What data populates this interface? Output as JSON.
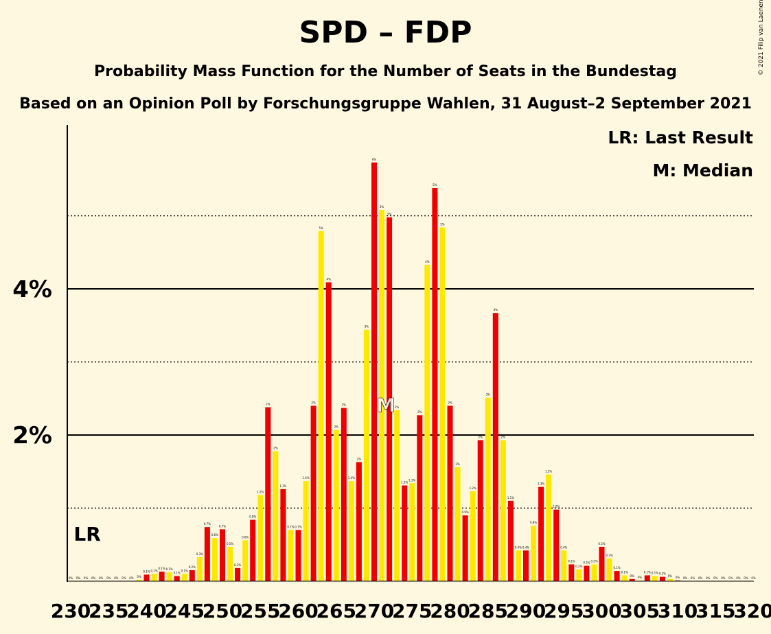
{
  "title": "SPD – FDP",
  "subtitle": "Probability Mass Function for the Number of Seats in the Bundestag",
  "source": "Based on an Opinion Poll by Forschungsgruppe Wahlen, 31 August–2 September 2021",
  "copyright": "© 2021 Filip van Laenen",
  "legend": {
    "lr": "LR: Last Result",
    "m": "M: Median"
  },
  "markers": {
    "last_result_label": "LR",
    "last_result_seat": 232,
    "median_label": "M",
    "median_seat": 272
  },
  "colors": {
    "background": "#FFF8E0",
    "red": "#EE0000",
    "yellow": "#FFE800"
  },
  "chart_data": {
    "type": "bar",
    "x_ticks": [
      230,
      235,
      240,
      245,
      250,
      255,
      260,
      265,
      270,
      275,
      280,
      285,
      290,
      295,
      300,
      305,
      310,
      315,
      320
    ],
    "y_ticks": [
      {
        "value": 2,
        "label": "2%"
      },
      {
        "value": 4,
        "label": "4%"
      }
    ],
    "ylim": [
      0,
      6.2
    ],
    "grid": "solid lines at 2% and 4%, dotted at 1%, 3% and 5%",
    "x": [
      230,
      231,
      232,
      233,
      234,
      235,
      236,
      237,
      238,
      239,
      240,
      241,
      242,
      243,
      244,
      245,
      246,
      247,
      248,
      249,
      250,
      251,
      252,
      253,
      254,
      255,
      256,
      257,
      258,
      259,
      260,
      261,
      262,
      263,
      264,
      265,
      266,
      267,
      268,
      269,
      270,
      271,
      272,
      273,
      274,
      275,
      276,
      277,
      278,
      279,
      280,
      281,
      282,
      283,
      284,
      285,
      286,
      287,
      288,
      289,
      290,
      291,
      292,
      293,
      294,
      295,
      296,
      297,
      298,
      299,
      300,
      301,
      302,
      303,
      304,
      305,
      306,
      307,
      308,
      309,
      310,
      311,
      312,
      313,
      314,
      315,
      316,
      317,
      318,
      319,
      320
    ],
    "values": [
      0,
      0,
      0,
      0,
      0,
      0,
      0,
      0,
      0,
      0.02,
      0.09,
      0.1,
      0.13,
      0.12,
      0.07,
      0.1,
      0.15,
      0.33,
      0.74,
      0.59,
      0.71,
      0.47,
      0.18,
      0.56,
      0.84,
      1.18,
      2.38,
      1.78,
      1.26,
      0.7,
      0.7,
      1.37,
      2.4,
      4.79,
      4.09,
      2.07,
      2.37,
      1.37,
      1.63,
      3.44,
      5.73,
      5.08,
      4.98,
      2.34,
      1.31,
      1.34,
      2.27,
      4.33,
      5.38,
      4.84,
      2.4,
      1.56,
      0.9,
      1.23,
      1.93,
      2.51,
      3.67,
      1.93,
      1.1,
      0.42,
      0.42,
      0.76,
      1.29,
      1.46,
      0.98,
      0.42,
      0.23,
      0.16,
      0.21,
      0.23,
      0.47,
      0.31,
      0.14,
      0.08,
      0.03,
      0.01,
      0.08,
      0.07,
      0.06,
      0.03,
      0.01,
      0,
      0,
      0,
      0,
      0,
      0,
      0,
      0,
      0,
      0
    ],
    "value_labels": [
      "0%",
      "0%",
      "0%",
      "0%",
      "0%",
      "0%",
      "0%",
      "0%",
      "0%",
      "0%",
      "0.1%",
      "0.1%",
      "0.1%",
      "0.1%",
      "0.1%",
      "0.1%",
      "0.2%",
      "0.3%",
      "0.7%",
      "0.6%",
      "0.7%",
      "0.5%",
      "0.2%",
      "0.6%",
      "0.8%",
      "1.2%",
      "2%",
      "2%",
      "1.3%",
      "0.7%",
      "0.7%",
      "1.4%",
      "2%",
      "5%",
      "4%",
      "2%",
      "2%",
      "1.4%",
      "2%",
      "3%",
      "6%",
      "5%",
      "5%",
      "2%",
      "1.3%",
      "1.3%",
      "2%",
      "4%",
      "5%",
      "5%",
      "2%",
      "2%",
      "0.9%",
      "1.2%",
      "2%",
      "3%",
      "4%",
      "2%",
      "1.1%",
      "0.4%",
      "0.4%",
      "0.8%",
      "1.3%",
      "1.5%",
      "1.0%",
      "0.4%",
      "0.2%",
      "0.2%",
      "0.2%",
      "0.2%",
      "0.5%",
      "0.3%",
      "0.1%",
      "0.1%",
      "0%",
      "0%",
      "0.1%",
      "0.1%",
      "0.1%",
      "0%",
      "0%",
      "0%",
      "0%",
      "0%",
      "0%",
      "0%",
      "0%",
      "0%",
      "0%",
      "0%",
      "0%"
    ]
  }
}
